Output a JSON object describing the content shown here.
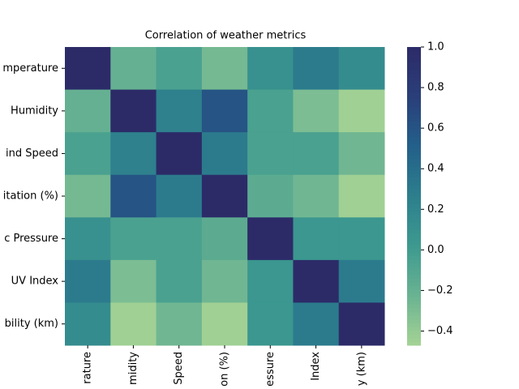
{
  "chart_data": {
    "type": "heatmap",
    "title": "Correlation of weather metrics",
    "x_labels": [
      "rature",
      "midity",
      "Speed",
      "on (%)",
      "essure",
      "Index",
      "y (km)"
    ],
    "y_labels": [
      "mperature",
      "Humidity",
      "ind Speed",
      "itation (%)",
      "c Pressure",
      "UV Index",
      "bility (km)"
    ],
    "values": [
      [
        1,
        -0.2,
        -0.05,
        -0.27,
        0.1,
        0.3,
        0.15
      ],
      [
        -0.2,
        1,
        0.25,
        0.6,
        -0.05,
        -0.3,
        -0.45
      ],
      [
        -0.05,
        0.25,
        1,
        0.3,
        -0.05,
        -0.05,
        -0.25
      ],
      [
        -0.27,
        0.6,
        0.3,
        1,
        -0.15,
        -0.25,
        -0.45
      ],
      [
        0.1,
        -0.05,
        -0.05,
        -0.15,
        1,
        0.05,
        0.05
      ],
      [
        0.3,
        -0.3,
        -0.05,
        -0.25,
        0.05,
        1,
        0.3
      ],
      [
        0.15,
        -0.45,
        -0.25,
        -0.45,
        0.05,
        0.3,
        1
      ]
    ],
    "colormap": [
      "#a5d394",
      "#6ab392",
      "#3d9a8f",
      "#2d7f8d",
      "#23608a",
      "#2a3f7a",
      "#2c2b68"
    ],
    "clim": [
      -0.47,
      1
    ],
    "cticks": [
      {
        "value": 1,
        "label": "1.0"
      },
      {
        "value": 0.8,
        "label": "0.8"
      },
      {
        "value": 0.6,
        "label": "0.6"
      },
      {
        "value": 0.4,
        "label": "0.4"
      },
      {
        "value": 0.2,
        "label": "0.2"
      },
      {
        "value": 0,
        "label": "0.0"
      },
      {
        "value": -0.2,
        "label": "−0.2"
      },
      {
        "value": -0.4,
        "label": "−0.4"
      }
    ]
  }
}
